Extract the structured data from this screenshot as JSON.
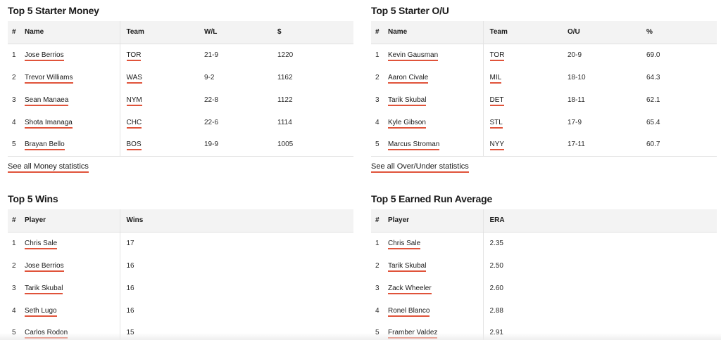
{
  "money": {
    "title": "Top 5 Starter Money",
    "headers": [
      "#",
      "Name",
      "Team",
      "W/L",
      "$"
    ],
    "rows": [
      {
        "rank": "1",
        "name": "Jose Berrios",
        "team": "TOR",
        "wl": "21-9",
        "value": "1220"
      },
      {
        "rank": "2",
        "name": "Trevor Williams",
        "team": "WAS",
        "wl": "9-2",
        "value": "1162"
      },
      {
        "rank": "3",
        "name": "Sean Manaea",
        "team": "NYM",
        "wl": "22-8",
        "value": "1122"
      },
      {
        "rank": "4",
        "name": "Shota Imanaga",
        "team": "CHC",
        "wl": "22-6",
        "value": "1114"
      },
      {
        "rank": "5",
        "name": "Brayan Bello",
        "team": "BOS",
        "wl": "19-9",
        "value": "1005"
      }
    ],
    "see_all": "See all Money statistics"
  },
  "ou": {
    "title": "Top 5 Starter O/U",
    "headers": [
      "#",
      "Name",
      "Team",
      "O/U",
      "%"
    ],
    "rows": [
      {
        "rank": "1",
        "name": "Kevin Gausman",
        "team": "TOR",
        "ou": "20-9",
        "pct": "69.0"
      },
      {
        "rank": "2",
        "name": "Aaron Civale",
        "team": "MIL",
        "ou": "18-10",
        "pct": "64.3"
      },
      {
        "rank": "3",
        "name": "Tarik Skubal",
        "team": "DET",
        "ou": "18-11",
        "pct": "62.1"
      },
      {
        "rank": "4",
        "name": "Kyle Gibson",
        "team": "STL",
        "ou": "17-9",
        "pct": "65.4"
      },
      {
        "rank": "5",
        "name": "Marcus Stroman",
        "team": "NYY",
        "ou": "17-11",
        "pct": "60.7"
      }
    ],
    "see_all": "See all Over/Under statistics"
  },
  "wins": {
    "title": "Top 5 Wins",
    "headers": [
      "#",
      "Player",
      "Wins"
    ],
    "rows": [
      {
        "rank": "1",
        "player": "Chris Sale",
        "wins": "17"
      },
      {
        "rank": "2",
        "player": "Jose Berrios",
        "wins": "16"
      },
      {
        "rank": "3",
        "player": "Tarik Skubal",
        "wins": "16"
      },
      {
        "rank": "4",
        "player": "Seth Lugo",
        "wins": "16"
      },
      {
        "rank": "5",
        "player": "Carlos Rodon",
        "wins": "15"
      }
    ]
  },
  "era": {
    "title": "Top 5 Earned Run Average",
    "headers": [
      "#",
      "Player",
      "ERA"
    ],
    "rows": [
      {
        "rank": "1",
        "player": "Chris Sale",
        "era": "2.35"
      },
      {
        "rank": "2",
        "player": "Tarik Skubal",
        "era": "2.50"
      },
      {
        "rank": "3",
        "player": "Zack Wheeler",
        "era": "2.60"
      },
      {
        "rank": "4",
        "player": "Ronel Blanco",
        "era": "2.88"
      },
      {
        "rank": "5",
        "player": "Framber Valdez",
        "era": "2.91"
      }
    ]
  },
  "colors": {
    "link_underline": "#e0533a",
    "header_bg": "#f3f3f3"
  }
}
